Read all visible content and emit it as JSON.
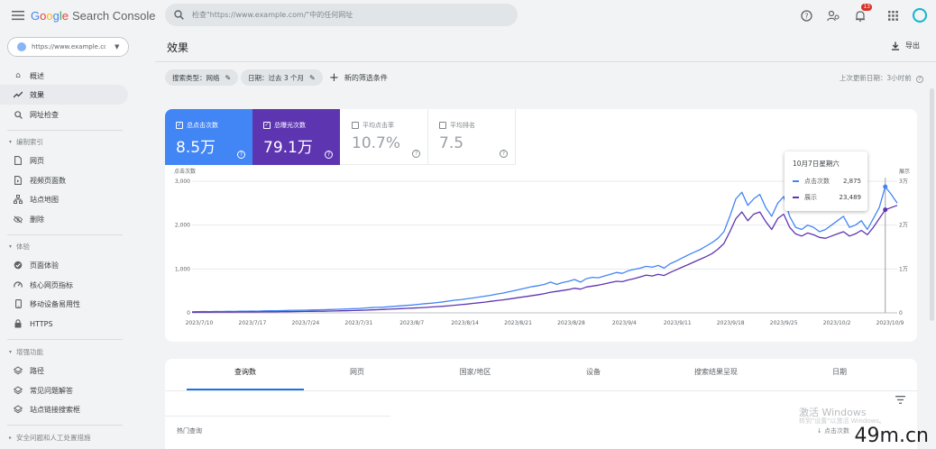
{
  "app": {
    "logo_google": [
      "G",
      "o",
      "o",
      "g",
      "l",
      "e"
    ],
    "logo_colors": [
      "#4285f4",
      "#ea4335",
      "#fbbc05",
      "#4285f4",
      "#34a853",
      "#ea4335"
    ],
    "logo_product": "Search Console"
  },
  "search": {
    "placeholder": "检查\"https://www.example.com/\"中的任何网址"
  },
  "header": {
    "notification_count": "13"
  },
  "property": {
    "label": "https://www.example.com/"
  },
  "sidebar": {
    "overview": "概述",
    "performance": "效果",
    "url_inspection": "网址检查",
    "section_index": "编制索引",
    "index_items": [
      "网页",
      "视频页面数",
      "站点地图",
      "删除"
    ],
    "section_experience": "体验",
    "experience_items": [
      "页面体验",
      "核心网页指标",
      "移动设备易用性",
      "HTTPS"
    ],
    "section_enhancements": "增强功能",
    "enhancement_items": [
      "路径",
      "常见问题解答",
      "站点链接搜索框"
    ],
    "section_security": "安全问题和人工处置措施"
  },
  "main": {
    "title": "效果",
    "export": "导出",
    "filters": {
      "search_type": "搜索类型：网络",
      "date": "日期：过去 3 个月",
      "add": "新的筛选条件"
    },
    "last_updated": "上次更新日期：3小时前"
  },
  "metrics": {
    "clicks": {
      "label": "总点击次数",
      "value": "8.5万",
      "checked": true
    },
    "impressions": {
      "label": "总曝光次数",
      "value": "79.1万",
      "checked": true
    },
    "ctr": {
      "label": "平均点击率",
      "value": "10.7%",
      "checked": false
    },
    "position": {
      "label": "平均排名",
      "value": "7.5",
      "checked": false
    }
  },
  "chart_data": {
    "type": "line",
    "left_axis_label": "点击次数",
    "right_axis_label": "展示",
    "left_ticks": [
      "3,000",
      "2,000",
      "1,000",
      "0"
    ],
    "right_ticks": [
      "3万",
      "2万",
      "1万",
      "0"
    ],
    "ylim_left": [
      0,
      3000
    ],
    "ylim_right": [
      0,
      30000
    ],
    "x_tick_labels": [
      "2023/7/10",
      "2023/7/17",
      "2023/7/24",
      "2023/7/31",
      "2023/8/7",
      "2023/8/14",
      "2023/8/21",
      "2023/8/28",
      "2023/9/4",
      "2023/9/11",
      "2023/9/18",
      "2023/9/25",
      "2023/10/2",
      "2023/10/9"
    ],
    "grid": true,
    "series": [
      {
        "name": "点击次数",
        "color": "#4285f4",
        "axis": "left",
        "values": [
          25,
          28,
          30,
          28,
          32,
          30,
          35,
          33,
          38,
          40,
          42,
          40,
          45,
          48,
          50,
          52,
          55,
          60,
          58,
          62,
          65,
          70,
          72,
          75,
          80,
          85,
          88,
          95,
          100,
          110,
          120,
          125,
          130,
          140,
          150,
          160,
          170,
          180,
          195,
          210,
          220,
          235,
          250,
          270,
          290,
          300,
          320,
          340,
          360,
          380,
          400,
          430,
          450,
          480,
          510,
          540,
          570,
          600,
          620,
          650,
          700,
          650,
          690,
          720,
          760,
          700,
          780,
          810,
          800,
          840,
          880,
          920,
          900,
          960,
          990,
          1020,
          1060,
          1040,
          1080,
          1020,
          1120,
          1180,
          1250,
          1320,
          1380,
          1440,
          1520,
          1600,
          1700,
          1850,
          2200,
          2600,
          2750,
          2450,
          2600,
          2700,
          2400,
          2200,
          2500,
          2650,
          2200,
          1950,
          1900,
          2000,
          1950,
          1850,
          1900,
          2000,
          2100,
          2200,
          1950,
          2000,
          2100,
          1900,
          2150,
          2400,
          2875,
          2700,
          2500
        ]
      },
      {
        "name": "展示",
        "color": "#5e35b1",
        "axis": "right",
        "values": [
          150,
          160,
          170,
          160,
          180,
          175,
          190,
          185,
          200,
          210,
          220,
          215,
          230,
          240,
          250,
          260,
          270,
          290,
          300,
          320,
          340,
          360,
          380,
          410,
          440,
          470,
          500,
          540,
          580,
          620,
          670,
          720,
          780,
          840,
          900,
          960,
          1020,
          1090,
          1160,
          1240,
          1330,
          1420,
          1510,
          1620,
          1740,
          1860,
          2000,
          2150,
          2300,
          2450,
          2620,
          2800,
          2950,
          3150,
          3350,
          3550,
          3750,
          3950,
          4150,
          4400,
          4700,
          4900,
          5100,
          5300,
          5600,
          5400,
          5900,
          6100,
          6300,
          6600,
          6900,
          7200,
          7100,
          7500,
          7800,
          8200,
          8600,
          8400,
          8800,
          8500,
          9200,
          9800,
          10400,
          11000,
          11600,
          12200,
          12800,
          13500,
          14500,
          15800,
          18500,
          21500,
          23000,
          21000,
          22500,
          23000,
          20800,
          19000,
          21500,
          22500,
          19500,
          18000,
          17500,
          18200,
          17800,
          17200,
          17000,
          17500,
          18000,
          18500,
          17500,
          18000,
          18800,
          17800,
          19500,
          21500,
          23489,
          24000,
          24500
        ]
      }
    ],
    "tooltip": {
      "title": "10月7日星期六",
      "rows": [
        {
          "name": "点击次数",
          "value": "2,875",
          "color": "#4285f4"
        },
        {
          "name": "展示",
          "value": "23,489",
          "color": "#5e35b1"
        }
      ],
      "index": 116
    }
  },
  "tabs": [
    "查询数",
    "网页",
    "国家/地区",
    "设备",
    "搜索结果呈现",
    "日期"
  ],
  "table": {
    "first_col": "热门查询",
    "sort_col": "点击次数"
  },
  "watermark": {
    "windows_line1": "激活 Windows",
    "windows_line2": "转到\"设置\"以激活 Windows。",
    "site": "49m.cn"
  }
}
